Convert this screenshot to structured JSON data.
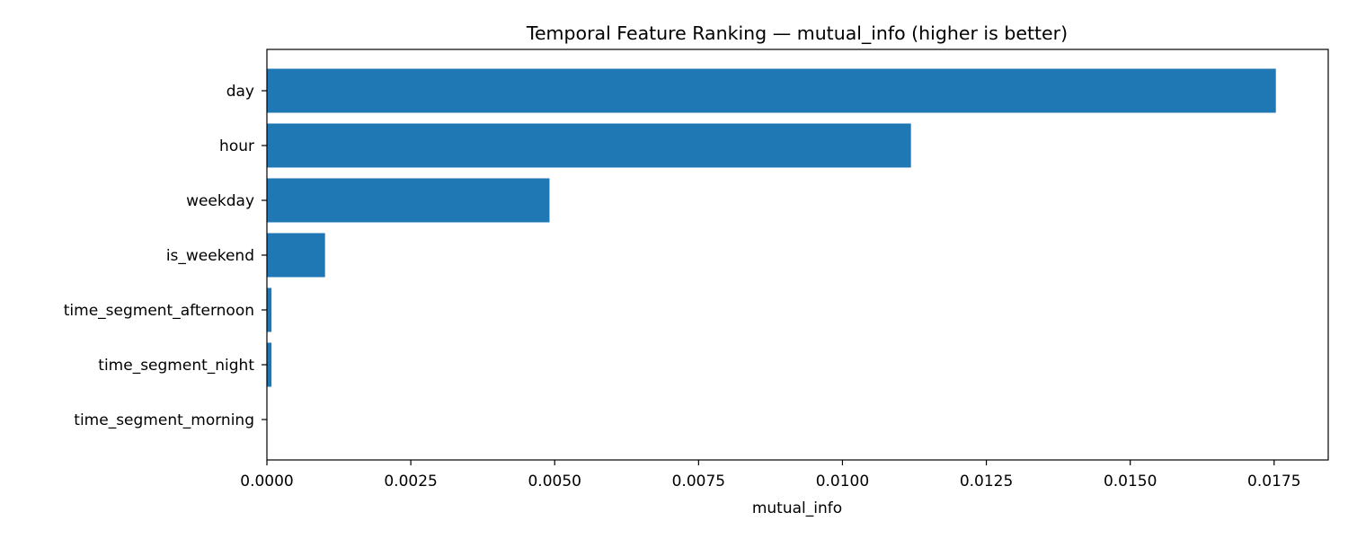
{
  "chart_data": {
    "type": "bar",
    "orientation": "horizontal",
    "title": "Temporal Feature Ranking — mutual_info (higher is better)",
    "xlabel": "mutual_info",
    "ylabel": "",
    "categories": [
      "day",
      "hour",
      "weekday",
      "is_weekend",
      "time_segment_afternoon",
      "time_segment_night",
      "time_segment_morning"
    ],
    "values": [
      0.01753,
      0.01119,
      0.00491,
      0.00101,
      8e-05,
      8e-05,
      0.0
    ],
    "xlim": [
      0,
      0.01844
    ],
    "xticks": [
      0,
      0.0025,
      0.005,
      0.0075,
      0.01,
      0.0125,
      0.015,
      0.0175
    ],
    "xtick_labels": [
      "0.0000",
      "0.0025",
      "0.0050",
      "0.0075",
      "0.0100",
      "0.0125",
      "0.0150",
      "0.0175"
    ],
    "grid": false,
    "bar_color": "#1f77b4"
  }
}
